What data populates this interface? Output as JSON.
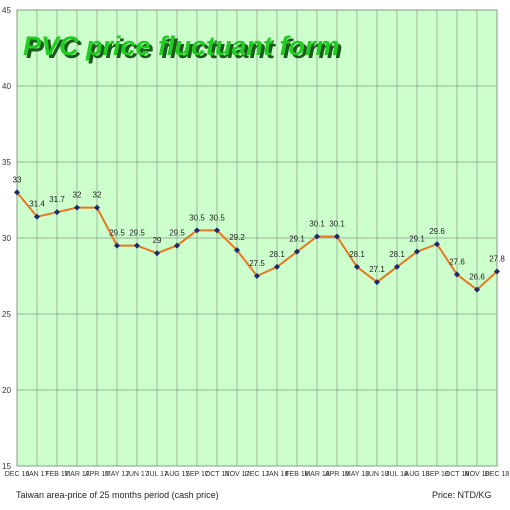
{
  "chart_data": {
    "type": "line",
    "title": "PVC price fluctuant form",
    "categories": [
      "DEC 16",
      "JAN 17",
      "FEB 17",
      "MAR 17",
      "APR 17",
      "MAY 17",
      "JUN 17",
      "JUL 17",
      "AUG 17",
      "SEP 17",
      "OCT 17",
      "NOV 17",
      "DEC 17",
      "JAN 18",
      "FEB 18",
      "MAR 18",
      "APR 18",
      "MAY 18",
      "JUN 18",
      "JUL 18",
      "AUG 18",
      "SEP 18",
      "OCT 18",
      "NOV 18",
      "DEC 18"
    ],
    "values": [
      33,
      31.4,
      31.7,
      32,
      32,
      29.5,
      29.5,
      29,
      29.5,
      30.5,
      30.5,
      29.2,
      27.5,
      28.1,
      29.1,
      30.1,
      30.1,
      28.1,
      27.1,
      28.1,
      29.1,
      29.6,
      27.6,
      26.6,
      27.8
    ],
    "data_labels": [
      "33",
      "31.4",
      "31.7",
      "32",
      "32",
      "29.5",
      "29.5",
      "29",
      "29.5",
      "30.5",
      "30.5",
      "29.2",
      "27.5",
      "28.1",
      "29.1",
      "30.1",
      "30.1",
      "28.1",
      "27.1",
      "28.1",
      "29.1",
      "29.6",
      "27.6",
      "26.6",
      "27.8"
    ],
    "ylim": [
      15,
      45
    ],
    "yticks": [
      15,
      20,
      25,
      30,
      35,
      40,
      45
    ],
    "grid": true,
    "legend": "none",
    "xlabel": "Taiwan area-price of 25 months period (cash price)",
    "unit_note": "Price: NTD/KG",
    "colors": {
      "plot_background": "#ccffcc",
      "grid": "#8a9a8a",
      "line": "#e87722",
      "marker": "#1a2a6c",
      "title_fill": "#22cc22",
      "title_shadow": "#1a5a1a"
    }
  }
}
